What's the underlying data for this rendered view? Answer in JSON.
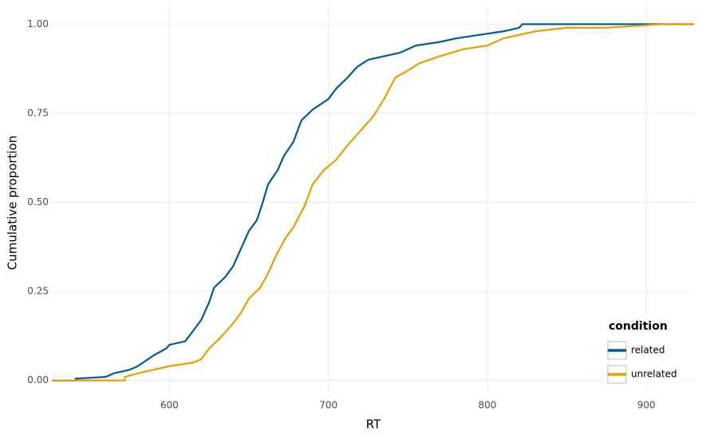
{
  "chart_data": {
    "type": "line",
    "x_label": "RT",
    "y_label": "Cumulative proportion",
    "xlim": [
      526,
      930
    ],
    "ylim": [
      -0.03,
      1.05
    ],
    "xticks": [
      600,
      700,
      800,
      900
    ],
    "yticks": [
      {
        "value": 0,
        "label": "0.00"
      },
      {
        "value": 0.25,
        "label": "0.25"
      },
      {
        "value": 0.5,
        "label": "0.50"
      },
      {
        "value": 0.75,
        "label": "0.75"
      },
      {
        "value": 1,
        "label": "1.00"
      }
    ],
    "grid": true,
    "legend_title": "condition",
    "legend_position": "bottom-right",
    "series": [
      {
        "name": "related",
        "color": "#005a96",
        "x": [
          526,
          541,
          541,
          560,
          565,
          575,
          580,
          590,
          598,
          600,
          610,
          615,
          620,
          625,
          628,
          635,
          640,
          645,
          650,
          655,
          658,
          662,
          668,
          672,
          678,
          683,
          690,
          700,
          705,
          712,
          718,
          725,
          735,
          745,
          755,
          770,
          780,
          795,
          810,
          820,
          822,
          930
        ],
        "values": [
          0,
          0,
          0.005,
          0.01,
          0.02,
          0.03,
          0.04,
          0.07,
          0.09,
          0.1,
          0.11,
          0.14,
          0.17,
          0.22,
          0.26,
          0.29,
          0.32,
          0.37,
          0.42,
          0.45,
          0.49,
          0.55,
          0.59,
          0.63,
          0.67,
          0.73,
          0.76,
          0.79,
          0.82,
          0.85,
          0.88,
          0.9,
          0.91,
          0.92,
          0.94,
          0.95,
          0.96,
          0.97,
          0.98,
          0.99,
          1,
          1
        ]
      },
      {
        "name": "unrelated",
        "color": "#e69f00",
        "x": [
          526,
          572,
          572,
          580,
          590,
          600,
          615,
          620,
          625,
          632,
          640,
          645,
          650,
          657,
          662,
          667,
          673,
          678,
          685,
          690,
          697,
          705,
          712,
          720,
          728,
          735,
          742,
          750,
          757,
          770,
          785,
          800,
          810,
          820,
          830,
          850,
          875,
          910,
          930
        ],
        "values": [
          0,
          0,
          0.01,
          0.02,
          0.03,
          0.04,
          0.05,
          0.06,
          0.09,
          0.12,
          0.16,
          0.19,
          0.23,
          0.26,
          0.3,
          0.35,
          0.4,
          0.43,
          0.49,
          0.55,
          0.59,
          0.62,
          0.66,
          0.7,
          0.74,
          0.79,
          0.85,
          0.87,
          0.89,
          0.91,
          0.93,
          0.94,
          0.96,
          0.97,
          0.98,
          0.99,
          0.99,
          1,
          1
        ]
      }
    ]
  }
}
